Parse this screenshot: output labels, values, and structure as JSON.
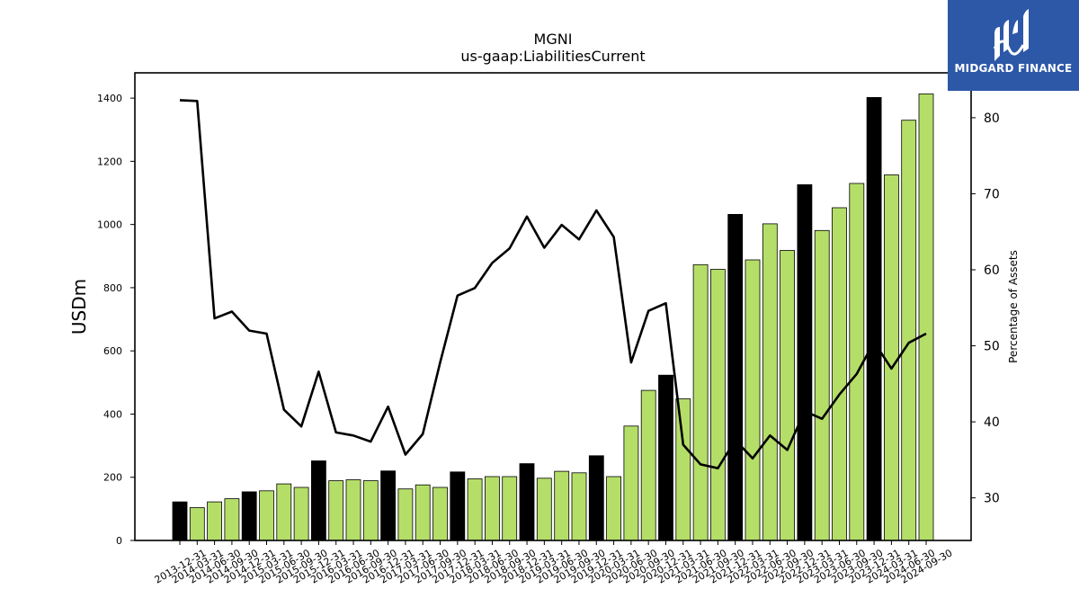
{
  "chart_data": {
    "type": "bar",
    "title": "MGNI",
    "subtitle": "us-gaap:LiabilitiesCurrent",
    "ylabel": "USDm",
    "y2label": "Percentage of Assets",
    "ylim": [
      0,
      1480
    ],
    "y2lim": [
      24.4,
      85.9
    ],
    "yticks": [
      0,
      200,
      400,
      600,
      800,
      1000,
      1200,
      1400
    ],
    "y2ticks": [
      30,
      40,
      50,
      60,
      70,
      80
    ],
    "categories": [
      "2013-12-31",
      "2014-03-31",
      "2014-06-30",
      "2014-09-30",
      "2014-12-31",
      "2015-03-31",
      "2015-06-30",
      "2015-09-30",
      "2015-12-31",
      "2016-03-31",
      "2016-06-30",
      "2016-09-30",
      "2016-12-31",
      "2017-03-31",
      "2017-06-30",
      "2017-09-30",
      "2017-12-31",
      "2018-03-31",
      "2018-06-30",
      "2018-09-30",
      "2018-12-31",
      "2019-03-31",
      "2019-06-30",
      "2019-09-30",
      "2019-12-31",
      "2020-03-31",
      "2020-06-30",
      "2020-09-30",
      "2020-12-31",
      "2021-03-31",
      "2021-06-30",
      "2021-09-30",
      "2021-12-31",
      "2022-03-31",
      "2022-06-30",
      "2022-09-30",
      "2022-12-31",
      "2023-03-31",
      "2023-06-30",
      "2023-09-30",
      "2023-12-31",
      "2024-03-31",
      "2024-06-30",
      "2024-09-30"
    ],
    "series": [
      {
        "type": "bar",
        "values": [
          122,
          104,
          122,
          132,
          154,
          157,
          179,
          168,
          252,
          189,
          192,
          189,
          220,
          163,
          176,
          168,
          217,
          195,
          202,
          202,
          243,
          197,
          219,
          214,
          268,
          202,
          362,
          475,
          523,
          448,
          873,
          858,
          1032,
          888,
          1002,
          918,
          1126,
          981,
          1053,
          1130,
          1402,
          1157,
          1330,
          1413
        ],
        "highlight": [
          0,
          4,
          8,
          12,
          16,
          20,
          24,
          28,
          32,
          36,
          40
        ]
      },
      {
        "type": "line",
        "axis": "right",
        "values": [
          82.3,
          82.2,
          53.6,
          54.5,
          52.0,
          51.6,
          41.6,
          39.4,
          46.6,
          38.6,
          38.2,
          37.4,
          42.0,
          35.7,
          38.4,
          47.8,
          56.6,
          57.6,
          60.9,
          62.8,
          67.0,
          62.9,
          65.9,
          64.0,
          67.8,
          64.3,
          47.8,
          54.6,
          55.6,
          37.0,
          34.4,
          33.9,
          37.6,
          35.2,
          38.2,
          36.3,
          41.4,
          40.4,
          43.6,
          46.3,
          50.5,
          47.0,
          50.4,
          51.6
        ]
      }
    ],
    "colors": {
      "bar": "#b5de69",
      "bar_highlight": "#000000",
      "line": "#000000",
      "axis": "#000000"
    },
    "grid": false
  },
  "logo": {
    "text": "MIDGARD FINANCE",
    "background": "#2d58a8"
  }
}
